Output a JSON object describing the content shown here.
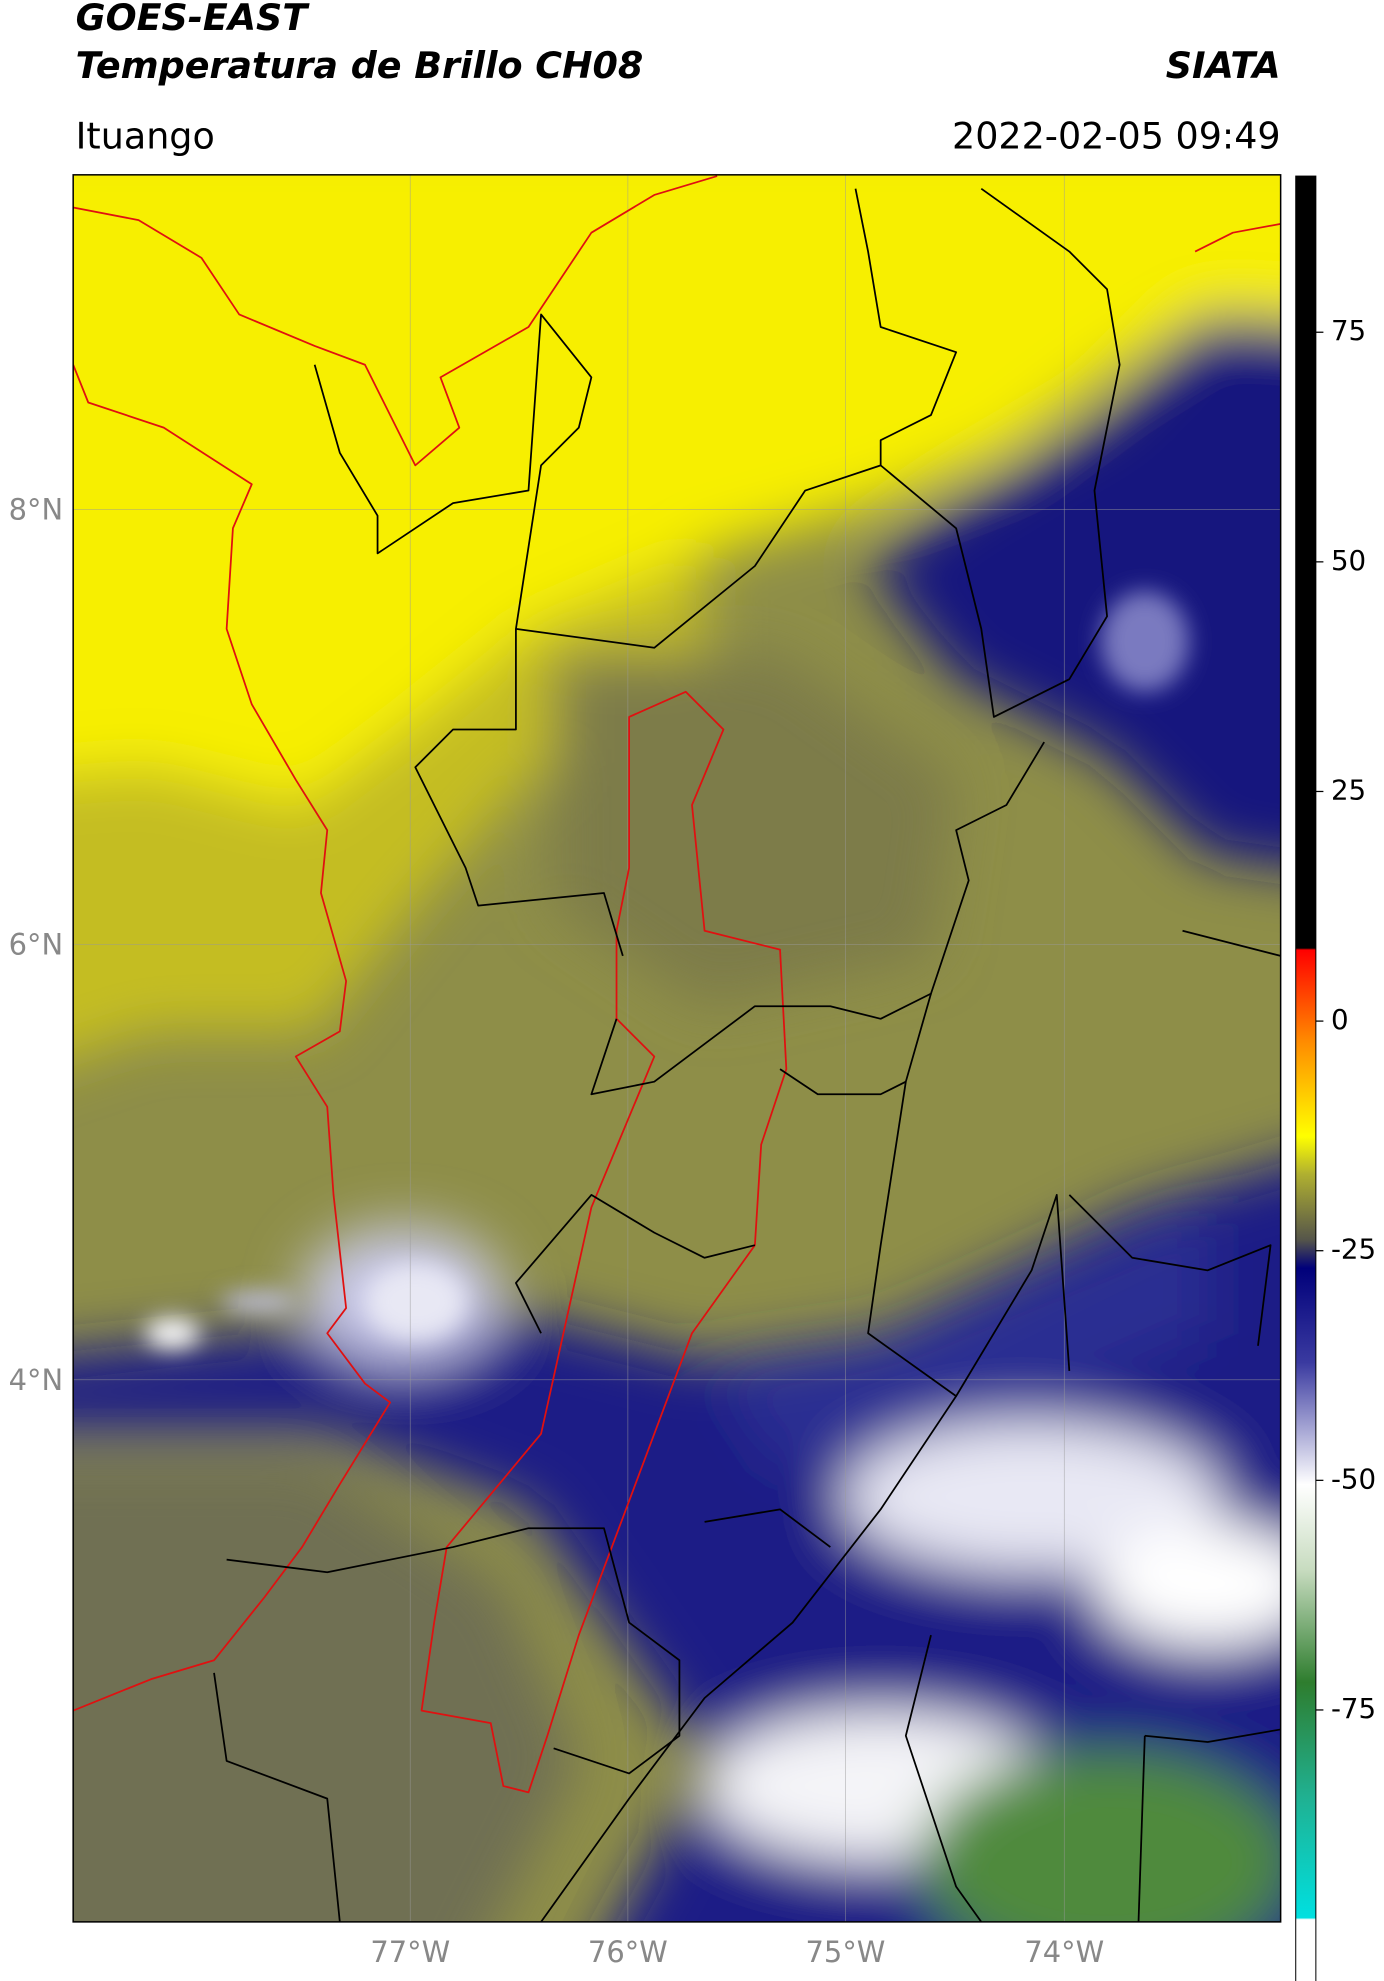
{
  "header": {
    "title_line1": "GOES-EAST",
    "title_line2": "Temperatura de Brillo CH08",
    "agency": "SIATA",
    "location": "Ituango",
    "datetime": "2022-02-05 09:49"
  },
  "map": {
    "lat_labels": [
      "8°N",
      "6°N",
      "4°N"
    ],
    "lon_labels": [
      "77°W",
      "76°W",
      "75°W",
      "74°W"
    ]
  },
  "colorbar": {
    "lim": [
      -113,
      92
    ],
    "ticks": [
      75,
      50,
      25,
      0,
      -25,
      -50,
      -75
    ]
  }
}
